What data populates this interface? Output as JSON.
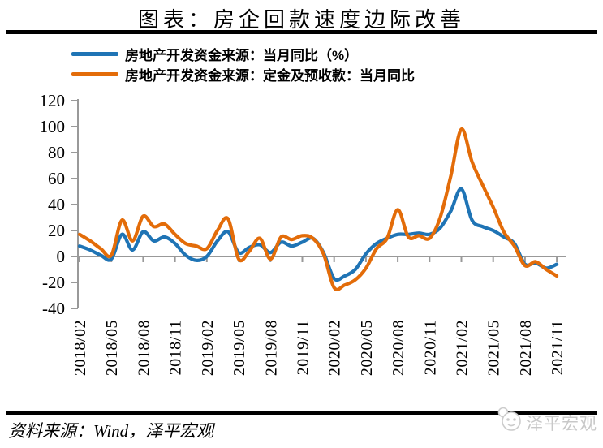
{
  "title": "图表：房企回款速度边际改善",
  "source_note": "资料来源：Wind，泽平宏观",
  "watermark": {
    "text": "泽平宏观",
    "icon": "panda-logo-icon",
    "color": "#C8C8C8"
  },
  "chart_data": {
    "type": "line",
    "title": "图表：房企回款速度边际改善",
    "xlabel": "",
    "ylabel": "",
    "ylim": [
      -40,
      120
    ],
    "y_ticks": [
      120,
      100,
      80,
      60,
      40,
      20,
      0,
      -20,
      -40
    ],
    "grid": false,
    "legend_position": "top-left",
    "axis_color": "#999999",
    "x_tick_labels": [
      "2018/02",
      "2018/05",
      "2018/08",
      "2018/11",
      "2019/02",
      "2019/05",
      "2019/08",
      "2019/11",
      "2020/02",
      "2020/05",
      "2020/08",
      "2020/11",
      "2021/02",
      "2021/05",
      "2021/08",
      "2021/11"
    ],
    "x": [
      "2018/02",
      "2018/03",
      "2018/04",
      "2018/05",
      "2018/06",
      "2018/07",
      "2018/08",
      "2018/09",
      "2018/10",
      "2018/11",
      "2018/12",
      "2019/01",
      "2019/02",
      "2019/03",
      "2019/04",
      "2019/05",
      "2019/06",
      "2019/07",
      "2019/08",
      "2019/09",
      "2019/10",
      "2019/11",
      "2019/12",
      "2020/01",
      "2020/02",
      "2020/03",
      "2020/04",
      "2020/05",
      "2020/06",
      "2020/07",
      "2020/08",
      "2020/09",
      "2020/10",
      "2020/11",
      "2020/12",
      "2021/01",
      "2021/02",
      "2021/03",
      "2021/04",
      "2021/05",
      "2021/06",
      "2021/07",
      "2021/08",
      "2021/09",
      "2021/10",
      "2021/11"
    ],
    "series": [
      {
        "name": "房地产开发资金来源：当月同比（%）",
        "color": "#1F74B5",
        "values": [
          8,
          5,
          1,
          -2,
          17,
          5,
          19,
          12,
          15,
          10,
          1,
          -3,
          0,
          12,
          19,
          3,
          7,
          9,
          3,
          11,
          8,
          11,
          14,
          3,
          -17,
          -15,
          -10,
          2,
          10,
          14,
          17,
          17,
          18,
          17,
          22,
          35,
          52,
          28,
          23,
          20,
          15,
          10,
          -6,
          -5,
          -9,
          -6
        ]
      },
      {
        "name": "房地产开发资金来源：定金及预收款：当月同比",
        "color": "#E36C09",
        "values": [
          17,
          12,
          6,
          1,
          28,
          12,
          31,
          23,
          25,
          17,
          10,
          8,
          6,
          20,
          29,
          -2,
          4,
          14,
          -2,
          15,
          13,
          16,
          14,
          2,
          -24,
          -22,
          -18,
          -9,
          6,
          14,
          36,
          15,
          16,
          14,
          30,
          62,
          98,
          73,
          55,
          38,
          19,
          8,
          -7,
          -4,
          -10,
          -15
        ]
      }
    ]
  }
}
